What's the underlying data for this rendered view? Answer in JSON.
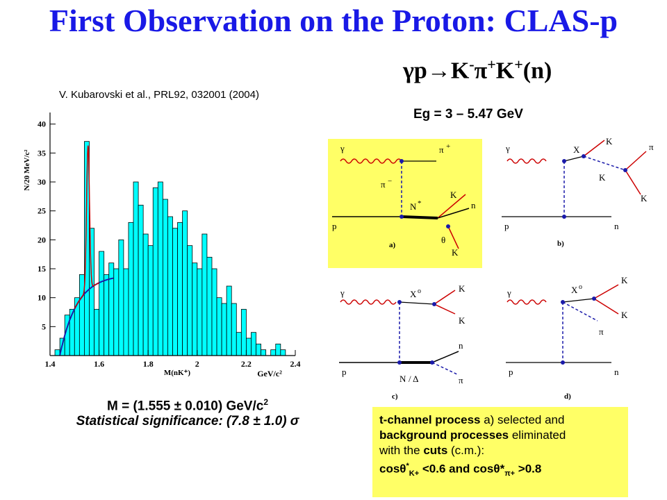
{
  "title": "First Observation on the Proton: CLAS-p",
  "reaction": {
    "gamma_p": "γp→K",
    "sup1": "-",
    "pi": "π",
    "sup2": "+",
    "k": "K",
    "sup3": "+",
    "n": "(n)"
  },
  "citation": "V. Kubarovski et al., PRL92, 032001 (2004)",
  "energy": "Eg = 3 – 5.47 GeV",
  "result": {
    "mass": "M = (1.555 ± 0.010) GeV/c",
    "mass_sup": "2",
    "significance": "Statistical significance: (7.8 ± 1.0) σ"
  },
  "note": {
    "line1_bold": "t-channel process",
    "line1_rest": " a) selected and",
    "line2_bold": "background processes",
    "line2_rest": " eliminated",
    "line3_a": "with the ",
    "line3_bold": "cuts",
    "line3_b": " (c.m.):",
    "line4_a": "cosθ",
    "line4_sup": "*",
    "line4_sub": "K+",
    "line4_b": " <0.6  and  cosθ*",
    "line4_sub2": "π+",
    "line4_c": " >0.8"
  },
  "chart_data": {
    "type": "bar",
    "title": "",
    "xlabel": "M(nK⁺)",
    "xunit": "GeV/c²",
    "ylabel": "N/20 MeV/c²",
    "xlim": [
      1.4,
      2.4
    ],
    "ylim": [
      0,
      42
    ],
    "xticks": [
      "1.4",
      "1.6",
      "1.8",
      "2",
      "2.2",
      "2.4"
    ],
    "yticks": [
      "5",
      "10",
      "15",
      "20",
      "25",
      "30",
      "35",
      "40"
    ],
    "bin_width": 0.02,
    "bin_starts": [
      1.42,
      1.44,
      1.46,
      1.48,
      1.5,
      1.52,
      1.54,
      1.56,
      1.58,
      1.6,
      1.62,
      1.64,
      1.66,
      1.68,
      1.7,
      1.72,
      1.74,
      1.76,
      1.78,
      1.8,
      1.82,
      1.84,
      1.86,
      1.88,
      1.9,
      1.92,
      1.94,
      1.96,
      1.98,
      2.0,
      2.02,
      2.04,
      2.06,
      2.08,
      2.1,
      2.12,
      2.14,
      2.16,
      2.18,
      2.2,
      2.22,
      2.24,
      2.26,
      2.28,
      2.3,
      2.32,
      2.34
    ],
    "values": [
      1,
      3,
      7,
      8,
      10,
      14,
      37,
      22,
      8,
      18,
      14,
      16,
      15,
      20,
      15,
      23,
      30,
      26,
      21,
      19,
      29,
      30,
      27,
      24,
      22,
      23,
      25,
      19,
      16,
      15,
      21,
      17,
      15,
      10,
      9,
      12,
      9,
      4,
      8,
      3,
      4,
      2,
      1,
      0,
      1,
      2,
      1
    ],
    "series": [
      {
        "name": "",
        "kind": "fit-peak",
        "color": "#cc0000"
      },
      {
        "name": "",
        "kind": "background-fit",
        "color": "#1a1aaa"
      }
    ],
    "bar_color": "#00ffff"
  },
  "diagrams": {
    "a": {
      "caption": "a)",
      "gamma": "γ",
      "pi_plus": "π",
      "pi_minus": "π",
      "sup_plus": "+",
      "sup_minus": "−",
      "p": "p",
      "n_star": "N",
      "star": "*",
      "k_minus": "K",
      "n": "n",
      "theta": "θ",
      "k_plus": "K"
    },
    "b": {
      "caption": "b)",
      "gamma": "γ",
      "x": "X",
      "k_plus": "K",
      "pi_plus": "π",
      "k_star": "K",
      "k_minus": "K",
      "p": "p",
      "n": "n"
    },
    "c": {
      "caption": "c)",
      "gamma": "γ",
      "x": "X",
      "sigma": "o",
      "k_plus": "K",
      "k_minus": "K",
      "p": "p",
      "n": "n",
      "n_delta": "N",
      "slash": "/ Δ",
      "pi_plus": "π"
    },
    "d": {
      "caption": "d)",
      "gamma": "γ",
      "x": "X",
      "sigma": "o",
      "k_plus": "K",
      "k_minus": "K",
      "pi_plus": "π",
      "p": "p",
      "n": "n"
    }
  },
  "colors": {
    "title": "#1919e6",
    "highlight": "#ffff66",
    "fit": "#cc0000",
    "bkg": "#1a1aaa"
  }
}
